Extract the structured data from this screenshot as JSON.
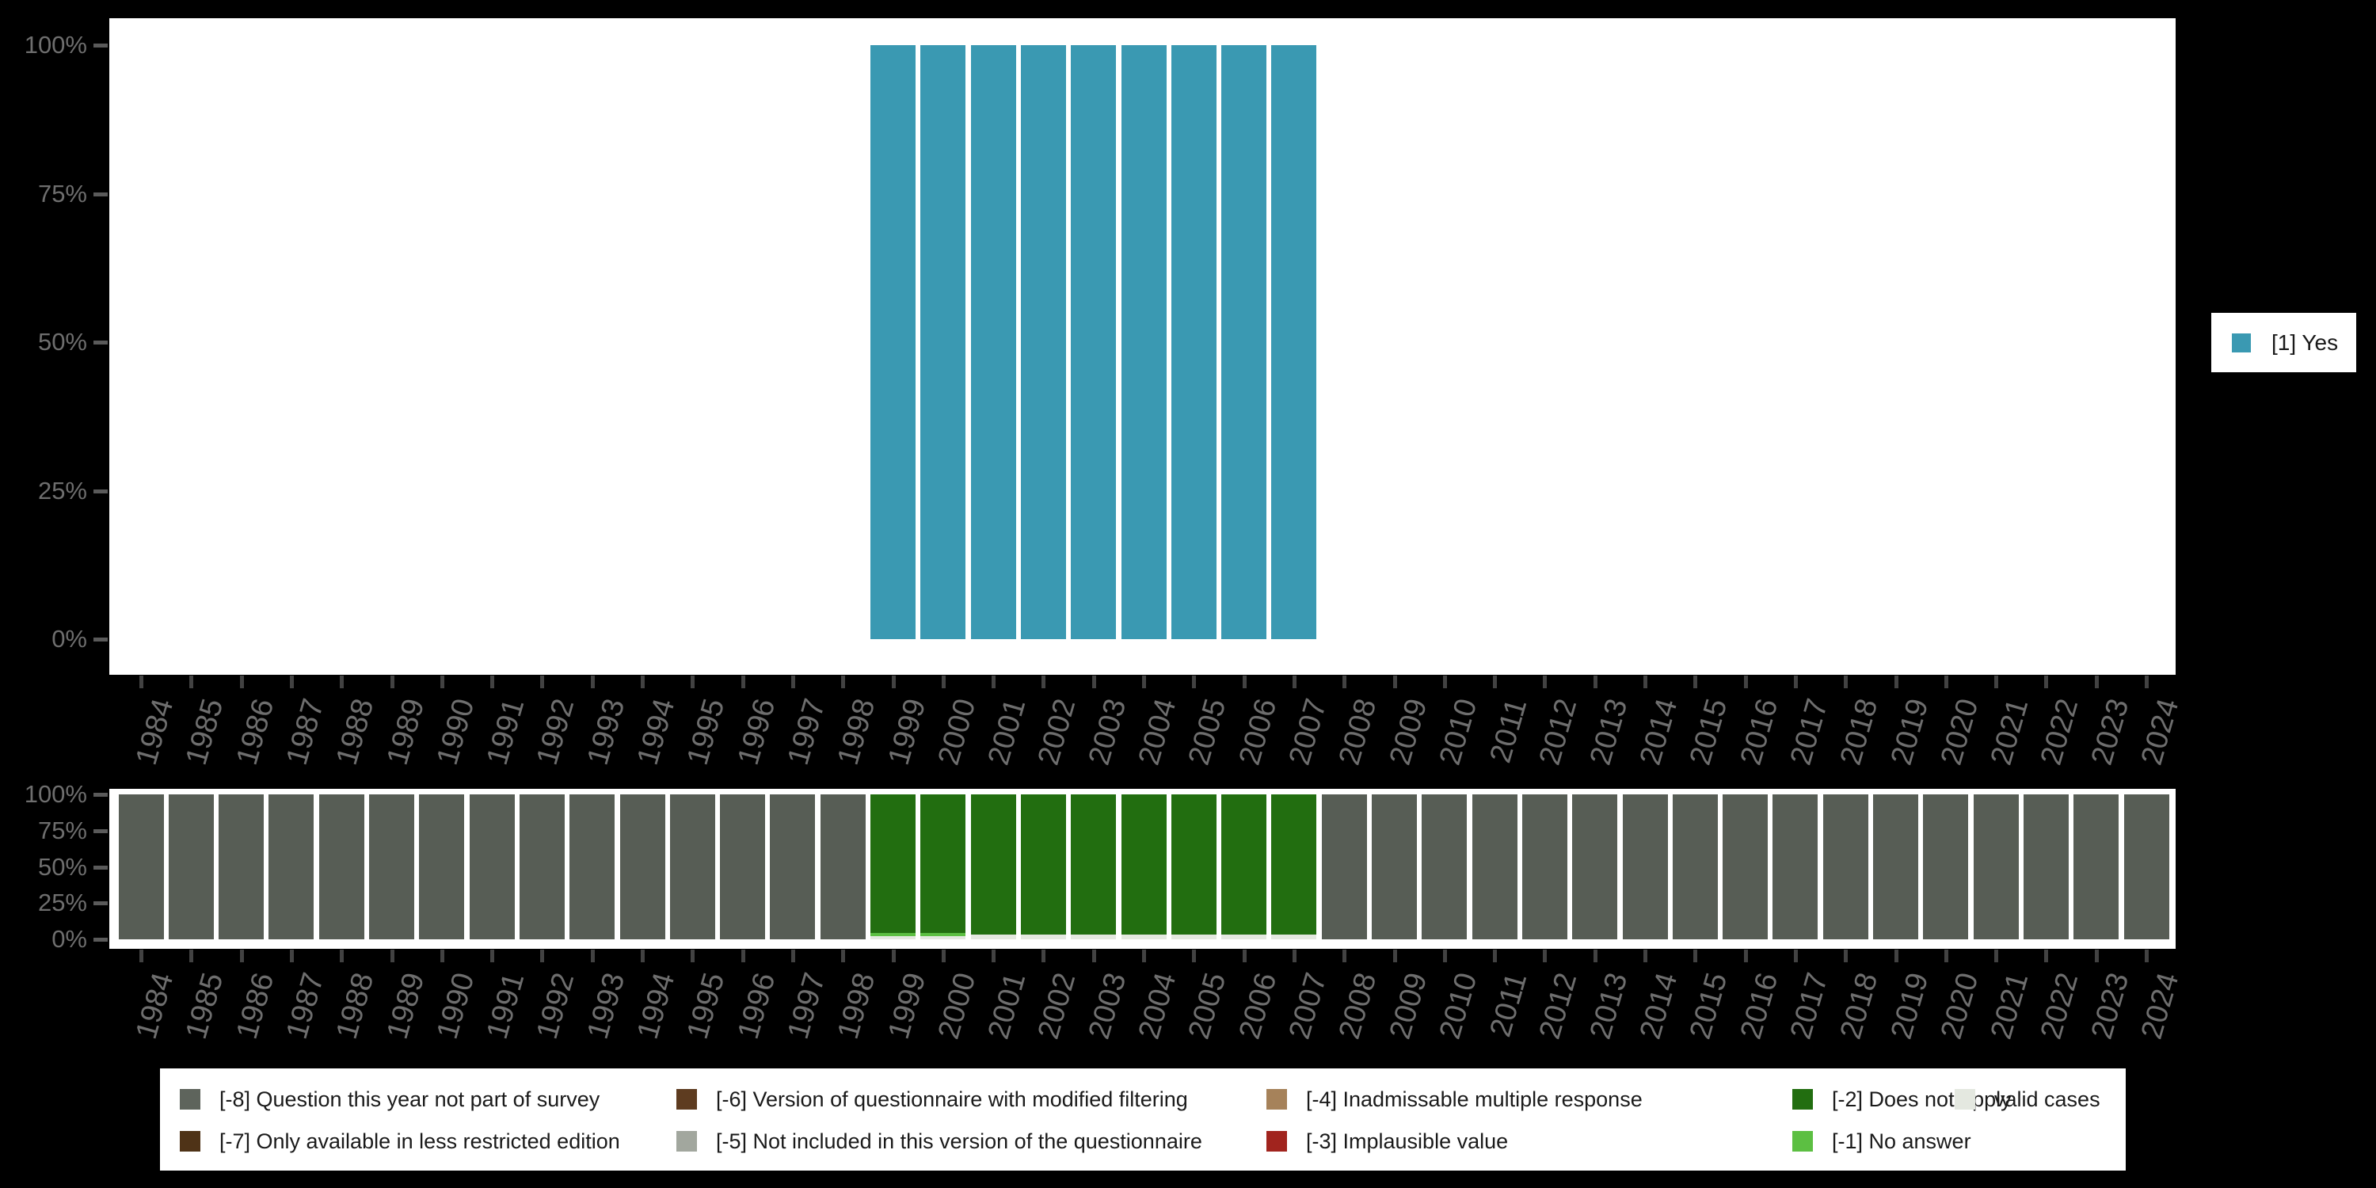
{
  "colors": {
    "background": "#000000",
    "plot_background": "#ffffff",
    "axis_text": "#6e6e6e",
    "y_tick": "#5a5a5a",
    "x_tick": "#424242",
    "legend_text": "#1a1a1a"
  },
  "right_legend": {
    "label": "[1] Yes",
    "color": "#3a99b2"
  },
  "years": [
    "1984",
    "1985",
    "1986",
    "1987",
    "1988",
    "1989",
    "1990",
    "1991",
    "1992",
    "1993",
    "1994",
    "1995",
    "1996",
    "1997",
    "1998",
    "1999",
    "2000",
    "2001",
    "2002",
    "2003",
    "2004",
    "2005",
    "2006",
    "2007",
    "2008",
    "2009",
    "2010",
    "2011",
    "2012",
    "2013",
    "2014",
    "2015",
    "2016",
    "2017",
    "2018",
    "2019",
    "2020",
    "2021",
    "2022",
    "2023",
    "2024"
  ],
  "chart_data": [
    {
      "type": "bar",
      "title": "",
      "x": [
        "1984",
        "1985",
        "1986",
        "1987",
        "1988",
        "1989",
        "1990",
        "1991",
        "1992",
        "1993",
        "1994",
        "1995",
        "1996",
        "1997",
        "1998",
        "1999",
        "2000",
        "2001",
        "2002",
        "2003",
        "2004",
        "2005",
        "2006",
        "2007",
        "2008",
        "2009",
        "2010",
        "2011",
        "2012",
        "2013",
        "2014",
        "2015",
        "2016",
        "2017",
        "2018",
        "2019",
        "2020",
        "2021",
        "2022",
        "2023",
        "2024"
      ],
      "series": [
        {
          "name": "[1] Yes",
          "color": "#3a99b2",
          "values": [
            null,
            null,
            null,
            null,
            null,
            null,
            null,
            null,
            null,
            null,
            null,
            null,
            null,
            null,
            null,
            100,
            100,
            100,
            100,
            100,
            100,
            100,
            100,
            100,
            null,
            null,
            null,
            null,
            null,
            null,
            null,
            null,
            null,
            null,
            null,
            null,
            null,
            null,
            null,
            null,
            null
          ]
        }
      ],
      "ylabel": "",
      "ytick_labels": [
        "100%",
        "75%",
        "50%",
        "25%",
        "0%"
      ],
      "ylim": [
        0,
        100
      ],
      "grid": false,
      "legend_position": "right"
    },
    {
      "type": "stacked_bar",
      "title": "",
      "x": [
        "1984",
        "1985",
        "1986",
        "1987",
        "1988",
        "1989",
        "1990",
        "1991",
        "1992",
        "1993",
        "1994",
        "1995",
        "1996",
        "1997",
        "1998",
        "1999",
        "2000",
        "2001",
        "2002",
        "2003",
        "2004",
        "2005",
        "2006",
        "2007",
        "2008",
        "2009",
        "2010",
        "2011",
        "2012",
        "2013",
        "2014",
        "2015",
        "2016",
        "2017",
        "2018",
        "2019",
        "2020",
        "2021",
        "2022",
        "2023",
        "2024"
      ],
      "series": [
        {
          "name": "[-8] Question this year not part of survey",
          "color": "#575d55",
          "values": [
            100,
            100,
            100,
            100,
            100,
            100,
            100,
            100,
            100,
            100,
            100,
            100,
            100,
            100,
            100,
            0,
            0,
            0,
            0,
            0,
            0,
            0,
            0,
            0,
            100,
            100,
            100,
            100,
            100,
            100,
            100,
            100,
            100,
            100,
            100,
            100,
            100,
            100,
            100,
            100,
            100
          ]
        },
        {
          "name": "[-2] Does not apply",
          "color": "#226e10",
          "values": [
            0,
            0,
            0,
            0,
            0,
            0,
            0,
            0,
            0,
            0,
            0,
            0,
            0,
            0,
            0,
            95.5,
            95.5,
            96.7,
            96.7,
            96.7,
            96.7,
            96.7,
            96.7,
            96.7,
            0,
            0,
            0,
            0,
            0,
            0,
            0,
            0,
            0,
            0,
            0,
            0,
            0,
            0,
            0,
            0,
            0
          ]
        },
        {
          "name": "[-1] No answer",
          "color": "#5cbf42",
          "values": [
            0,
            0,
            0,
            0,
            0,
            0,
            0,
            0,
            0,
            0,
            0,
            0,
            0,
            0,
            0,
            2.2,
            2.2,
            0,
            0,
            0,
            0,
            0,
            0,
            0,
            0,
            0,
            0,
            0,
            0,
            0,
            0,
            0,
            0,
            0,
            0,
            0,
            0,
            0,
            0,
            0,
            0
          ]
        },
        {
          "name": "valid cases",
          "color": "#e4e8e0",
          "values": [
            0,
            0,
            0,
            0,
            0,
            0,
            0,
            0,
            0,
            0,
            0,
            0,
            0,
            0,
            0,
            2.3,
            2.3,
            3.3,
            3.3,
            3.3,
            3.3,
            3.3,
            3.3,
            3.3,
            0,
            0,
            0,
            0,
            0,
            0,
            0,
            0,
            0,
            0,
            0,
            0,
            0,
            0,
            0,
            0,
            0
          ]
        }
      ],
      "ylabel": "",
      "ytick_labels": [
        "100%",
        "75%",
        "50%",
        "25%",
        "0%"
      ],
      "ylim": [
        0,
        100
      ],
      "grid": false,
      "legend_position": "bottom"
    }
  ],
  "bottom_legend": {
    "items": [
      {
        "label": "[-8] Question this year not part of survey",
        "color": "#5e645c",
        "col": 0,
        "row": 0
      },
      {
        "label": "[-7] Only available in less restricted edition",
        "color": "#4f3317",
        "col": 0,
        "row": 1
      },
      {
        "label": "[-6] Version of questionnaire with modified filtering",
        "color": "#5e3c20",
        "col": 1,
        "row": 0
      },
      {
        "label": "[-5] Not included in this version of the questionnaire",
        "color": "#a2a79e",
        "col": 1,
        "row": 1
      },
      {
        "label": "[-4] Inadmissable multiple response",
        "color": "#a6825a",
        "col": 2,
        "row": 0
      },
      {
        "label": "[-3] Implausible value",
        "color": "#a1241e",
        "col": 2,
        "row": 1
      },
      {
        "label": "[-2] Does not apply",
        "color": "#226e10",
        "col": 3,
        "row": 0
      },
      {
        "label": "[-1] No answer",
        "color": "#5cbf42",
        "col": 3,
        "row": 1
      },
      {
        "label": "valid cases",
        "color": "#e4e8e0",
        "col": 4,
        "row": 0
      }
    ]
  }
}
